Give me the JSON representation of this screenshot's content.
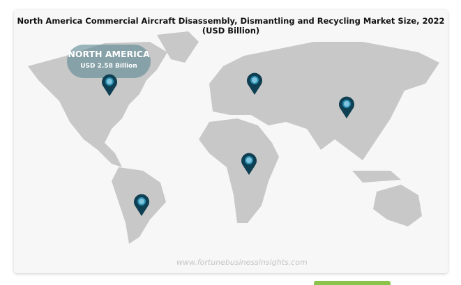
{
  "title": "North America Commercial Aircraft Disassembly, Dismantling and Recycling Market Size, 2022 (USD Billion)",
  "highlight": {
    "region": "NORTH AMERICA",
    "value": "USD 2.58 Billion"
  },
  "watermark": "www.fortunebusinessinsights.com",
  "markers": [
    "North America",
    "Europe",
    "Asia Pacific",
    "Middle East & Africa",
    "Latin America"
  ],
  "colors": {
    "land": "#c8c8c8",
    "pin": "#0e3f52",
    "pin_center": "#7fc4dc",
    "background": "#f7f7f7"
  }
}
